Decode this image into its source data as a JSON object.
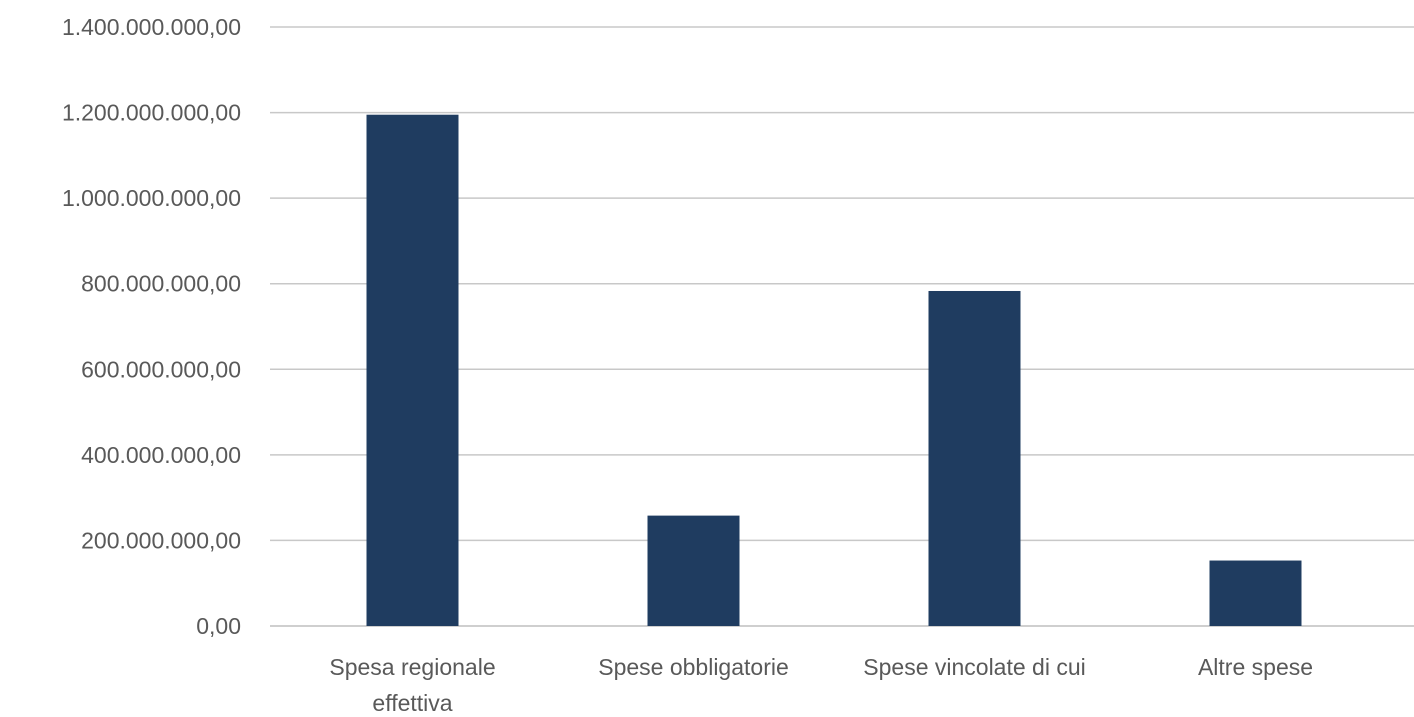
{
  "chart_data": {
    "type": "bar",
    "categories": [
      [
        "Spesa regionale",
        "effettiva"
      ],
      [
        "Spese obbligatorie"
      ],
      [
        "Spese vincolate di cui"
      ],
      [
        "Altre spese"
      ]
    ],
    "values": [
      1195000000,
      258000000,
      783000000,
      153000000
    ],
    "ylim": [
      0,
      1400000000
    ],
    "yticks": [
      0,
      200000000,
      400000000,
      600000000,
      800000000,
      1000000000,
      1200000000,
      1400000000
    ],
    "ytick_labels": [
      "0,00",
      "200.000.000,00",
      "400.000.000,00",
      "600.000.000,00",
      "800.000.000,00",
      "1.000.000.000,00",
      "1.200.000.000,00",
      "1.400.000.000,00"
    ],
    "grid": true,
    "legend": "none",
    "bar_color": "#1f3c60",
    "title": "",
    "xlabel": "",
    "ylabel": ""
  }
}
